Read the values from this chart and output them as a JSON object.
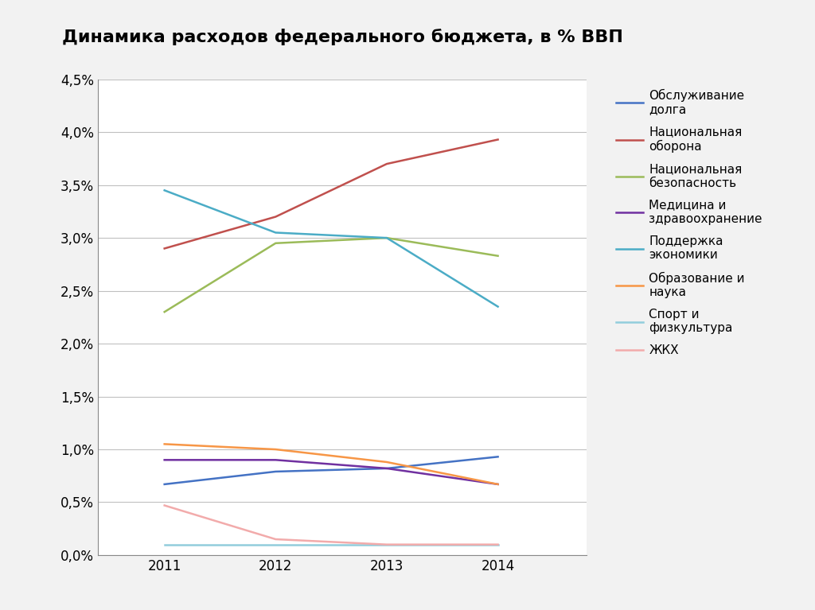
{
  "title": "Динамика расходов федерального бюджета, в % ВВП",
  "years": [
    2011,
    2012,
    2013,
    2014
  ],
  "series": [
    {
      "name": "Обслуживание\nдолга",
      "color": "#4472C4",
      "values": [
        0.0067,
        0.0079,
        0.0082,
        0.0093
      ]
    },
    {
      "name": "Национальная\nоборона",
      "color": "#C0504D",
      "values": [
        0.029,
        0.032,
        0.037,
        0.0393
      ]
    },
    {
      "name": "Национальная\nбезопасность",
      "color": "#9BBB59",
      "values": [
        0.023,
        0.0295,
        0.03,
        0.0283
      ]
    },
    {
      "name": "Медицина и\nздравоохранение",
      "color": "#7030A0",
      "values": [
        0.009,
        0.009,
        0.0082,
        0.0067
      ]
    },
    {
      "name": "Поддержка\nэкономики",
      "color": "#4BACC6",
      "values": [
        0.0345,
        0.0305,
        0.03,
        0.0235
      ]
    },
    {
      "name": "Образование и\nнаука",
      "color": "#F79646",
      "values": [
        0.0105,
        0.01,
        0.0088,
        0.0067
      ]
    },
    {
      "name": "Спорт и\nфизкультура",
      "color": "#92CDDC",
      "values": [
        0.001,
        0.001,
        0.001,
        0.001
      ]
    },
    {
      "name": "ЖКХ",
      "color": "#F2ABAB",
      "values": [
        0.0047,
        0.0015,
        0.001,
        0.001
      ]
    }
  ],
  "ylim": [
    0,
    0.045
  ],
  "yticks": [
    0.0,
    0.005,
    0.01,
    0.015,
    0.02,
    0.025,
    0.03,
    0.035,
    0.04,
    0.045
  ],
  "ytick_labels": [
    "0,0%",
    "0,5%",
    "1,0%",
    "1,5%",
    "2,0%",
    "2,5%",
    "3,0%",
    "3,5%",
    "4,0%",
    "4,5%"
  ],
  "background_color": "#FFFFFF",
  "grid_color": "#C0C0C0",
  "title_fontsize": 16,
  "tick_fontsize": 12,
  "legend_fontsize": 11,
  "outer_bg": "#F2F2F2"
}
